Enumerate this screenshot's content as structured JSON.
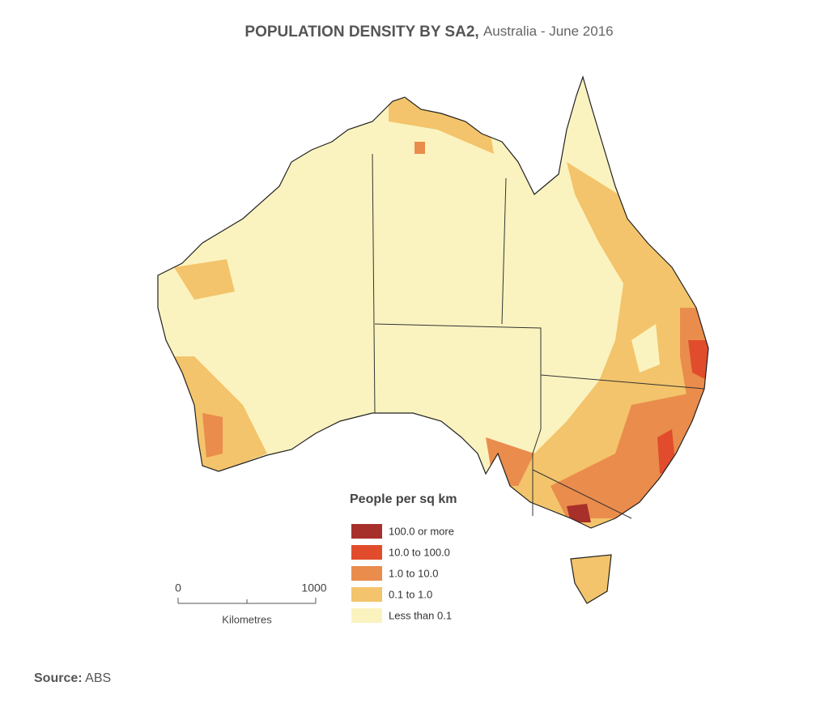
{
  "title": "POPULATION DENSITY BY SA2,",
  "subtitle": "Australia - June 2016",
  "legend": {
    "title": "People per sq km",
    "items": [
      {
        "label": "100.0 or more",
        "color": "#a8302a"
      },
      {
        "label": "10.0 to 100.0",
        "color": "#e14d2c"
      },
      {
        "label": "1.0 to 10.0",
        "color": "#ea8c4c"
      },
      {
        "label": "0.1 to 1.0",
        "color": "#f3c46b"
      },
      {
        "label": "Less than 0.1",
        "color": "#fbf3bf"
      }
    ]
  },
  "scale": {
    "ticks": [
      0,
      1000
    ],
    "label": "Kilometres"
  },
  "source": {
    "label": "Source:",
    "text": "ABS"
  }
}
